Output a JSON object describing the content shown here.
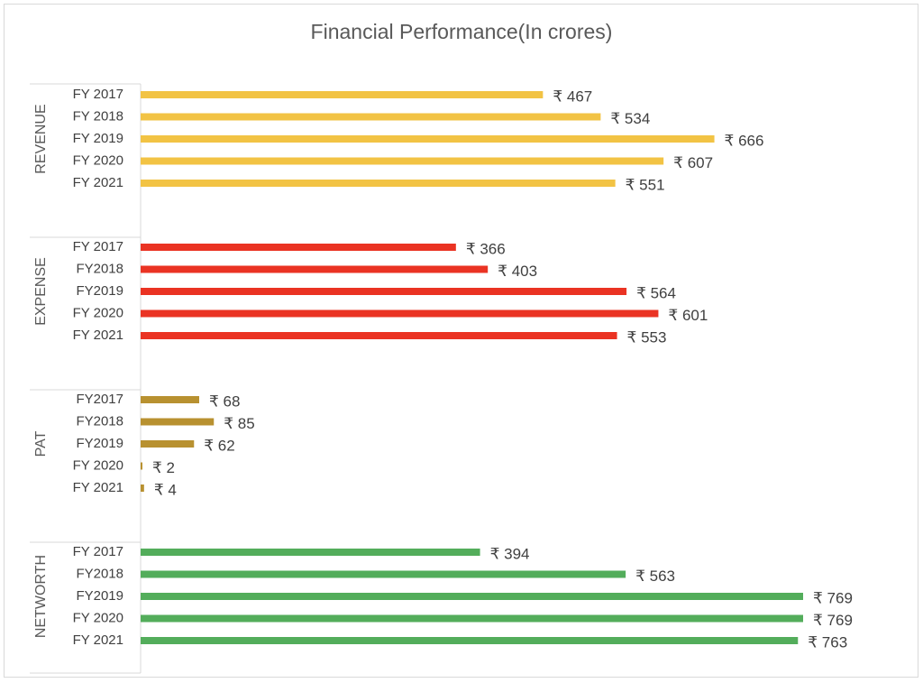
{
  "chart_data": {
    "type": "bar",
    "orientation": "horizontal",
    "title": "Financial Performance(In crores)",
    "currency_symbol": "₹",
    "groups": [
      {
        "name": "REVENUE",
        "color": "#f2c344",
        "categories": [
          "FY 2017",
          "FY 2018",
          "FY 2019",
          "FY 2020",
          "FY 2021"
        ],
        "values": [
          467,
          534,
          666,
          607,
          551
        ]
      },
      {
        "name": "EXPENSE",
        "color": "#ea3323",
        "categories": [
          "FY 2017",
          "FY2018",
          "FY2019",
          "FY 2020",
          "FY 2021"
        ],
        "values": [
          366,
          403,
          564,
          601,
          553
        ]
      },
      {
        "name": "PAT",
        "color": "#b89130",
        "categories": [
          "FY2017",
          "FY2018",
          "FY2019",
          "FY 2020",
          "FY 2021"
        ],
        "values": [
          68,
          85,
          62,
          2,
          4
        ]
      },
      {
        "name": "NETWORTH",
        "color": "#53ad5b",
        "categories": [
          "FY 2017",
          "FY2018",
          "FY2019",
          "FY 2020",
          "FY 2021"
        ],
        "values": [
          394,
          563,
          769,
          769,
          763
        ]
      }
    ],
    "xlim": [
      0,
      769
    ],
    "grid": false,
    "legend": "none"
  }
}
